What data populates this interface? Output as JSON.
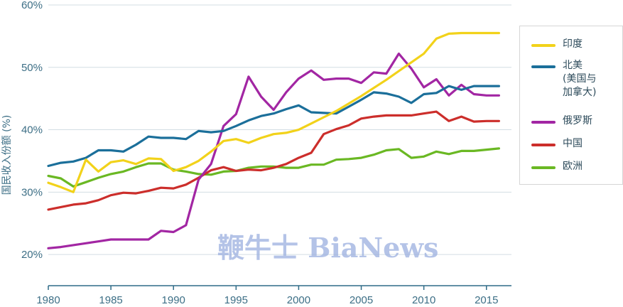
{
  "chart_data": {
    "type": "line",
    "ylabel": "国民收入份额 (%)",
    "ylim": [
      15,
      60
    ],
    "yticks": [
      "20%",
      "30%",
      "40%",
      "50%",
      "60%"
    ],
    "xlim": [
      1980,
      2017
    ],
    "xticks": [
      "1980",
      "1985",
      "1990",
      "1995",
      "2000",
      "2005",
      "2010",
      "2015"
    ],
    "x": [
      1980,
      1981,
      1982,
      1983,
      1984,
      1985,
      1986,
      1987,
      1988,
      1989,
      1990,
      1991,
      1992,
      1993,
      1994,
      1995,
      1996,
      1997,
      1998,
      1999,
      2000,
      2001,
      2002,
      2003,
      2004,
      2005,
      2006,
      2007,
      2008,
      2009,
      2010,
      2011,
      2012,
      2013,
      2014,
      2015,
      2016
    ],
    "series": [
      {
        "name": "印度",
        "color": "#f2d21a",
        "values": [
          31.5,
          30.8,
          30.0,
          35.2,
          33.3,
          34.8,
          35.1,
          34.5,
          35.4,
          35.3,
          33.4,
          34.0,
          35.0,
          36.5,
          38.2,
          38.5,
          37.9,
          38.7,
          39.3,
          39.5,
          40.0,
          41.0,
          42.0,
          43.0,
          44.2,
          45.4,
          46.7,
          48.0,
          49.4,
          50.8,
          52.2,
          54.6,
          55.4,
          55.5,
          55.5,
          55.5,
          55.5
        ]
      },
      {
        "name": "北美\n(美国与\n加拿大)",
        "color": "#1b6f9a",
        "values": [
          34.2,
          34.7,
          34.9,
          35.5,
          36.7,
          36.7,
          36.5,
          37.6,
          38.9,
          38.7,
          38.7,
          38.5,
          39.8,
          39.6,
          39.8,
          40.6,
          41.5,
          42.2,
          42.6,
          43.3,
          43.9,
          42.8,
          42.7,
          42.6,
          43.7,
          44.8,
          46.0,
          45.8,
          45.3,
          44.3,
          45.7,
          45.9,
          47.0,
          46.4,
          47.0,
          47.0,
          47.0
        ]
      },
      {
        "name": "俄罗斯",
        "color": "#a226a3",
        "values": [
          21.0,
          21.2,
          21.5,
          21.8,
          22.1,
          22.4,
          22.4,
          22.4,
          22.4,
          23.8,
          23.6,
          24.7,
          32.0,
          34.5,
          40.6,
          42.5,
          48.5,
          45.3,
          43.2,
          46.0,
          48.2,
          49.5,
          48.0,
          48.2,
          48.2,
          47.5,
          49.2,
          49.0,
          52.2,
          49.8,
          46.8,
          48.1,
          45.5,
          47.2,
          45.7,
          45.5,
          45.5
        ]
      },
      {
        "name": "中国",
        "color": "#cc2e2b",
        "values": [
          27.2,
          27.6,
          28.0,
          28.2,
          28.7,
          29.5,
          29.9,
          29.8,
          30.2,
          30.7,
          30.6,
          31.2,
          32.3,
          33.5,
          34.0,
          33.4,
          33.6,
          33.5,
          33.9,
          34.5,
          35.5,
          36.3,
          39.3,
          40.1,
          40.7,
          41.8,
          42.1,
          42.3,
          42.3,
          42.3,
          42.6,
          42.9,
          41.4,
          42.1,
          41.3,
          41.4,
          41.4
        ]
      },
      {
        "name": "欧洲",
        "color": "#6ab823",
        "values": [
          32.6,
          32.2,
          30.9,
          31.6,
          32.3,
          32.9,
          33.3,
          34.0,
          34.6,
          34.6,
          33.6,
          33.3,
          32.9,
          32.8,
          33.3,
          33.4,
          33.9,
          34.1,
          34.1,
          33.9,
          33.9,
          34.4,
          34.4,
          35.2,
          35.3,
          35.5,
          36.0,
          36.7,
          36.9,
          35.5,
          35.7,
          36.5,
          36.1,
          36.6,
          36.6,
          36.8,
          37.0
        ]
      }
    ]
  },
  "watermark": "鞭牛士 BiaNews"
}
